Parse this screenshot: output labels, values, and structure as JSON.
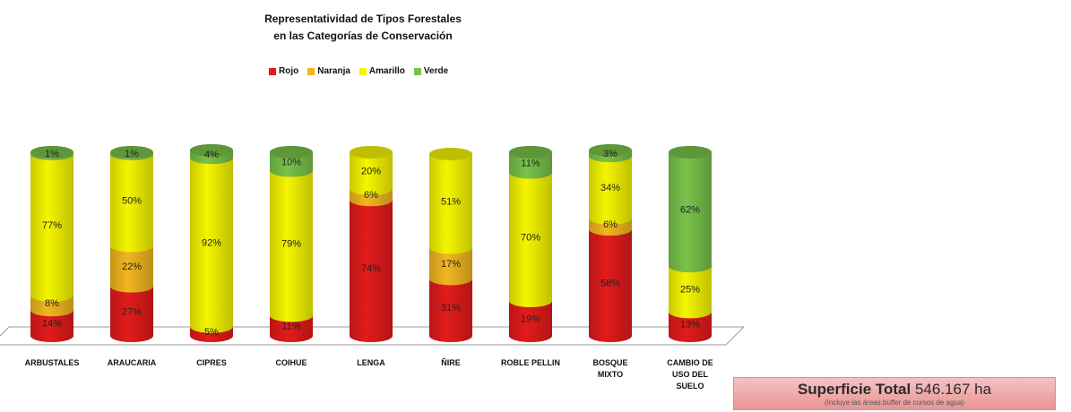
{
  "chart_data": {
    "type": "bar",
    "stacked": true,
    "orientation": "vertical",
    "style": "3d-cylinder",
    "title": [
      "Representatividad de Tipos Forestales",
      "en  las Categorías de Conservación"
    ],
    "legend_position": "top",
    "categories": [
      "ARBUSTALES",
      "ARAUCARIA",
      "CIPRES",
      "COIHUE",
      "LENGA",
      "ÑIRE",
      "ROBLE PELLIN",
      "BOSQUE MIXTO",
      "CAMBIO DE USO DEL SUELO"
    ],
    "category_lines": [
      [
        "ARBUSTALES"
      ],
      [
        "ARAUCARIA"
      ],
      [
        "CIPRES"
      ],
      [
        "COIHUE"
      ],
      [
        "LENGA"
      ],
      [
        "ÑIRE"
      ],
      [
        "ROBLE PELLIN"
      ],
      [
        "BOSQUE",
        "MIXTO"
      ],
      [
        "CAMBIO DE",
        "USO DEL",
        "SUELO"
      ]
    ],
    "series": [
      {
        "name": "Rojo",
        "color": "#e31b1b",
        "values": [
          14,
          27,
          5,
          11,
          74,
          31,
          19,
          58,
          13
        ]
      },
      {
        "name": "Naranja",
        "color": "#f2b61f",
        "values": [
          8,
          22,
          null,
          null,
          6,
          17,
          null,
          6,
          null
        ]
      },
      {
        "name": "Amarillo",
        "color": "#f5f500",
        "values": [
          77,
          50,
          92,
          79,
          20,
          51,
          70,
          34,
          25
        ]
      },
      {
        "name": "Verde",
        "color": "#79c24a",
        "values": [
          1,
          1,
          4,
          10,
          null,
          null,
          11,
          3,
          62
        ]
      }
    ],
    "ylim": [
      0,
      100
    ],
    "grid": false
  },
  "summary": {
    "label": "Superficie Total",
    "value": "546.167 ha",
    "note": "(Incluye las áreas buffer de cursos de agua)"
  }
}
